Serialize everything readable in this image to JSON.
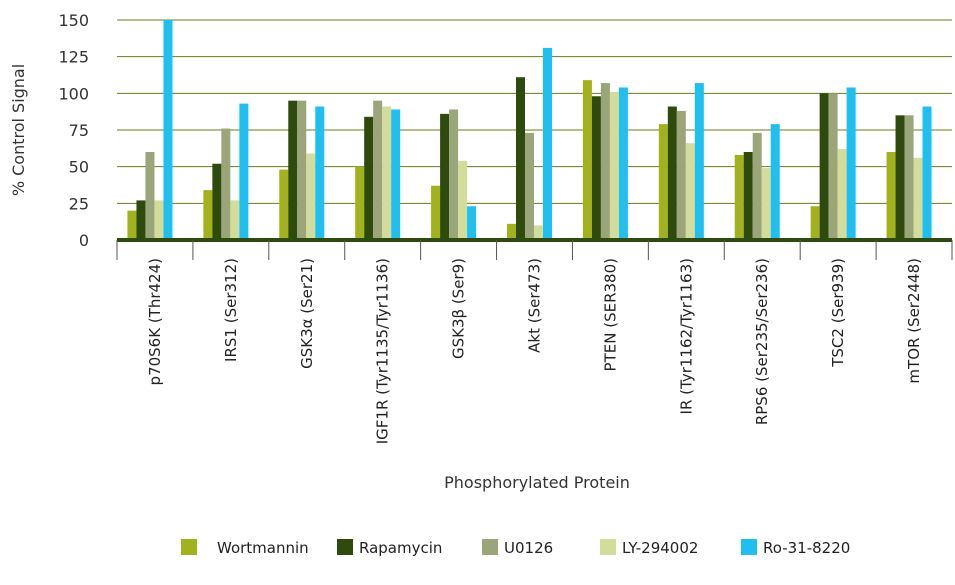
{
  "chart_data": {
    "type": "bar",
    "title": "",
    "xlabel": "Phosphorylated Protein",
    "ylabel": "% Control Signal",
    "ylim": [
      0,
      150
    ],
    "yticks": [
      0,
      25,
      50,
      75,
      100,
      125,
      150
    ],
    "grid": true,
    "legend_position": "bottom",
    "categories": [
      "p70S6K (Thr424)",
      "IRS1 (Ser312)",
      "GSK3α (Ser21)",
      "IGF1R (Tyr1135/Tyr1136)",
      "GSK3β (Ser9)",
      "Akt (Ser473)",
      "PTEN (SER380)",
      "IR (Tyr1162/Tyr1163)",
      "RPS6 (Ser235/Ser236)",
      "TSC2 (Ser939)",
      "mTOR (Ser2448)"
    ],
    "series": [
      {
        "name": "Wortmannin",
        "color": "#a2b21c",
        "values": [
          20,
          34,
          48,
          50,
          37,
          11,
          109,
          79,
          58,
          23,
          60
        ]
      },
      {
        "name": "Rapamycin",
        "color": "#2e4a0c",
        "values": [
          27,
          52,
          95,
          84,
          86,
          111,
          98,
          91,
          60,
          100,
          85
        ]
      },
      {
        "name": "U0126",
        "color": "#9aa67a",
        "values": [
          60,
          76,
          95,
          95,
          89,
          73,
          107,
          88,
          73,
          100,
          85
        ]
      },
      {
        "name": "LY-294002",
        "color": "#d3dc9a",
        "values": [
          27,
          27,
          59,
          91,
          54,
          10,
          101,
          66,
          49,
          62,
          56
        ]
      },
      {
        "name": "Ro-31-8220",
        "color": "#1fbff0",
        "values": [
          150,
          93,
          91,
          89,
          23,
          131,
          104,
          107,
          79,
          104,
          91
        ]
      }
    ]
  }
}
